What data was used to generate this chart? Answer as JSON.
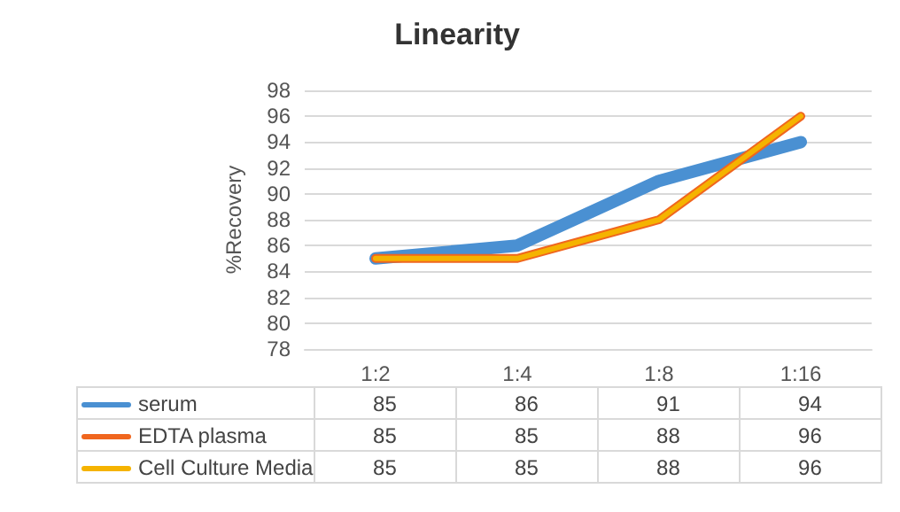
{
  "chart_data": {
    "type": "line",
    "title": "Linearity",
    "ylabel": "%Recovery",
    "categories": [
      "1:2",
      "1:4",
      "1:8",
      "1:16"
    ],
    "series": [
      {
        "name": "serum",
        "color": "#4a90d2",
        "values": [
          85,
          86,
          91,
          94
        ]
      },
      {
        "name": "EDTA plasma",
        "color": "#f0661e",
        "values": [
          85,
          85,
          88,
          96
        ]
      },
      {
        "name": "Cell Culture Media",
        "color": "#f5b300",
        "values": [
          85,
          85,
          88,
          96
        ]
      }
    ],
    "ylim": [
      78,
      98
    ],
    "yticks": [
      78,
      80,
      82,
      84,
      86,
      88,
      90,
      92,
      94,
      96,
      98
    ],
    "grid": "y",
    "legend": "bottom",
    "data_labels": true,
    "marker": "none",
    "line_style": "solid"
  }
}
